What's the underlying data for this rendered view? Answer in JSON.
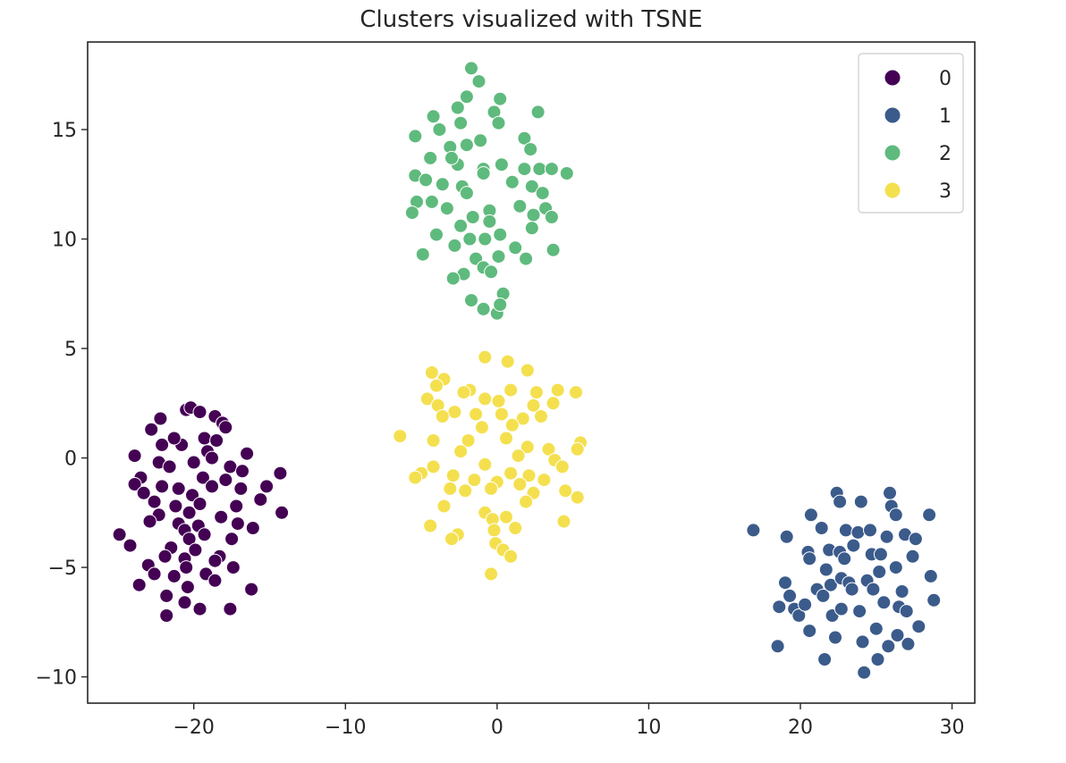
{
  "chart_data": {
    "type": "scatter",
    "title": "Clusters visualized with TSNE",
    "xlabel": "",
    "ylabel": "",
    "xlim": [
      -27,
      31.5
    ],
    "ylim": [
      -11.2,
      19
    ],
    "xticks": [
      -20,
      -10,
      0,
      10,
      20,
      30
    ],
    "yticks": [
      -10,
      -5,
      0,
      5,
      10,
      15
    ],
    "xtick_labels": [
      "−20",
      "−10",
      "0",
      "10",
      "20",
      "30"
    ],
    "ytick_labels": [
      "−10",
      "−5",
      "0",
      "5",
      "10",
      "15"
    ],
    "legend": {
      "position": "top-right",
      "entries": [
        "0",
        "1",
        "2",
        "3"
      ]
    },
    "grid": false,
    "series": [
      {
        "name": "0",
        "color": "#440154",
        "points": [
          [
            -22.2,
            1.8
          ],
          [
            -20.5,
            2.2
          ],
          [
            -20.2,
            2.3
          ],
          [
            -19.6,
            2.1
          ],
          [
            -18.6,
            1.9
          ],
          [
            -18.1,
            1.6
          ],
          [
            -22.8,
            1.3
          ],
          [
            -17.9,
            1.4
          ],
          [
            -22.1,
            0.6
          ],
          [
            -20.8,
            0.6
          ],
          [
            -19.3,
            0.9
          ],
          [
            -18.5,
            0.8
          ],
          [
            -19.1,
            0.3
          ],
          [
            -16.5,
            0.2
          ],
          [
            -21.3,
            0.9
          ],
          [
            -23.9,
            0.1
          ],
          [
            -18.8,
            0.0
          ],
          [
            -22.3,
            -0.2
          ],
          [
            -20.0,
            -0.2
          ],
          [
            -17.6,
            -0.4
          ],
          [
            -21.6,
            -0.4
          ],
          [
            -16.8,
            -0.6
          ],
          [
            -14.3,
            -0.7
          ],
          [
            -23.5,
            -0.9
          ],
          [
            -19.4,
            -0.9
          ],
          [
            -17.9,
            -1.0
          ],
          [
            -23.9,
            -1.2
          ],
          [
            -22.1,
            -1.3
          ],
          [
            -21.0,
            -1.4
          ],
          [
            -18.8,
            -1.3
          ],
          [
            -16.9,
            -1.4
          ],
          [
            -23.3,
            -1.6
          ],
          [
            -20.1,
            -1.7
          ],
          [
            -15.2,
            -1.3
          ],
          [
            -22.6,
            -2.0
          ],
          [
            -21.2,
            -2.2
          ],
          [
            -19.6,
            -2.1
          ],
          [
            -17.2,
            -2.2
          ],
          [
            -15.6,
            -1.9
          ],
          [
            -20.3,
            -2.5
          ],
          [
            -22.3,
            -2.6
          ],
          [
            -18.2,
            -2.7
          ],
          [
            -14.2,
            -2.5
          ],
          [
            -22.9,
            -2.9
          ],
          [
            -21.0,
            -3.0
          ],
          [
            -19.7,
            -3.1
          ],
          [
            -17.1,
            -3.0
          ],
          [
            -16.1,
            -3.2
          ],
          [
            -20.6,
            -3.3
          ],
          [
            -24.9,
            -3.5
          ],
          [
            -19.3,
            -3.5
          ],
          [
            -20.3,
            -3.7
          ],
          [
            -17.5,
            -3.7
          ],
          [
            -24.2,
            -4.0
          ],
          [
            -21.5,
            -4.1
          ],
          [
            -19.9,
            -4.2
          ],
          [
            -21.9,
            -4.5
          ],
          [
            -18.3,
            -4.5
          ],
          [
            -18.6,
            -4.7
          ],
          [
            -20.6,
            -4.6
          ],
          [
            -23.0,
            -4.9
          ],
          [
            -20.5,
            -5.0
          ],
          [
            -17.4,
            -5.0
          ],
          [
            -22.6,
            -5.3
          ],
          [
            -21.3,
            -5.4
          ],
          [
            -19.2,
            -5.3
          ],
          [
            -18.6,
            -5.6
          ],
          [
            -23.6,
            -5.8
          ],
          [
            -20.4,
            -5.9
          ],
          [
            -21.8,
            -6.3
          ],
          [
            -20.6,
            -6.6
          ],
          [
            -19.6,
            -6.9
          ],
          [
            -21.8,
            -7.2
          ],
          [
            -17.6,
            -6.9
          ],
          [
            -16.2,
            -6.0
          ]
        ]
      },
      {
        "name": "1",
        "color": "#3b5b8b",
        "points": [
          [
            16.9,
            -3.3
          ],
          [
            18.5,
            -8.6
          ],
          [
            18.6,
            -6.8
          ],
          [
            19.0,
            -5.7
          ],
          [
            19.1,
            -3.6
          ],
          [
            19.3,
            -6.3
          ],
          [
            19.6,
            -6.9
          ],
          [
            19.9,
            -7.2
          ],
          [
            20.3,
            -6.7
          ],
          [
            20.5,
            -4.3
          ],
          [
            20.6,
            -4.6
          ],
          [
            20.6,
            -7.9
          ],
          [
            20.7,
            -2.6
          ],
          [
            21.1,
            -6.0
          ],
          [
            21.4,
            -3.2
          ],
          [
            21.5,
            -6.3
          ],
          [
            21.6,
            -9.2
          ],
          [
            21.7,
            -5.1
          ],
          [
            21.9,
            -4.2
          ],
          [
            22.0,
            -5.8
          ],
          [
            22.1,
            -7.2
          ],
          [
            22.3,
            -8.2
          ],
          [
            22.4,
            -1.6
          ],
          [
            22.6,
            -2.0
          ],
          [
            22.6,
            -4.3
          ],
          [
            22.7,
            -5.5
          ],
          [
            22.7,
            -6.9
          ],
          [
            22.9,
            -4.6
          ],
          [
            23.0,
            -3.3
          ],
          [
            23.2,
            -5.7
          ],
          [
            23.4,
            -6.0
          ],
          [
            23.5,
            -4.0
          ],
          [
            23.8,
            -3.4
          ],
          [
            23.9,
            -7.0
          ],
          [
            24.0,
            -2.0
          ],
          [
            24.1,
            -8.4
          ],
          [
            24.2,
            -9.8
          ],
          [
            24.4,
            -5.6
          ],
          [
            24.6,
            -3.3
          ],
          [
            24.7,
            -4.4
          ],
          [
            24.8,
            -6.0
          ],
          [
            25.0,
            -7.8
          ],
          [
            25.1,
            -9.2
          ],
          [
            25.2,
            -5.2
          ],
          [
            25.3,
            -4.4
          ],
          [
            25.5,
            -6.6
          ],
          [
            25.7,
            -3.6
          ],
          [
            25.8,
            -8.6
          ],
          [
            25.9,
            -1.6
          ],
          [
            26.0,
            -2.2
          ],
          [
            26.3,
            -5.0
          ],
          [
            26.4,
            -8.1
          ],
          [
            26.5,
            -6.8
          ],
          [
            26.7,
            -6.1
          ],
          [
            26.9,
            -3.5
          ],
          [
            27.0,
            -7.0
          ],
          [
            27.1,
            -8.5
          ],
          [
            27.4,
            -4.5
          ],
          [
            27.6,
            -3.7
          ],
          [
            27.8,
            -7.7
          ],
          [
            28.5,
            -2.6
          ],
          [
            28.6,
            -5.4
          ],
          [
            28.8,
            -6.5
          ],
          [
            26.3,
            -2.6
          ]
        ]
      },
      {
        "name": "2",
        "color": "#5fba7d",
        "points": [
          [
            -1.7,
            17.8
          ],
          [
            -1.2,
            17.2
          ],
          [
            -2.0,
            16.5
          ],
          [
            0.2,
            16.4
          ],
          [
            -2.6,
            16.0
          ],
          [
            -0.2,
            15.8
          ],
          [
            2.7,
            15.8
          ],
          [
            -4.2,
            15.6
          ],
          [
            -2.4,
            15.3
          ],
          [
            0.1,
            15.3
          ],
          [
            -3.8,
            15.0
          ],
          [
            -5.4,
            14.7
          ],
          [
            1.8,
            14.6
          ],
          [
            -1.1,
            14.5
          ],
          [
            -2.0,
            14.3
          ],
          [
            2.2,
            14.1
          ],
          [
            -3.1,
            14.2
          ],
          [
            -4.4,
            13.7
          ],
          [
            -2.6,
            13.4
          ],
          [
            0.3,
            13.4
          ],
          [
            1.8,
            13.2
          ],
          [
            2.8,
            13.2
          ],
          [
            3.6,
            13.2
          ],
          [
            4.6,
            13.0
          ],
          [
            -0.9,
            13.2
          ],
          [
            -5.4,
            12.9
          ],
          [
            -4.7,
            12.7
          ],
          [
            -3.6,
            12.5
          ],
          [
            -2.3,
            12.4
          ],
          [
            1.0,
            12.6
          ],
          [
            2.3,
            12.4
          ],
          [
            3.0,
            12.1
          ],
          [
            -2.0,
            12.1
          ],
          [
            -4.3,
            11.7
          ],
          [
            -5.3,
            11.7
          ],
          [
            -3.3,
            11.4
          ],
          [
            -0.5,
            11.3
          ],
          [
            1.5,
            11.5
          ],
          [
            3.2,
            11.4
          ],
          [
            -5.6,
            11.2
          ],
          [
            -1.6,
            11.0
          ],
          [
            -0.5,
            10.8
          ],
          [
            2.4,
            11.1
          ],
          [
            3.6,
            11.0
          ],
          [
            -2.4,
            10.6
          ],
          [
            0.2,
            10.2
          ],
          [
            2.3,
            10.5
          ],
          [
            -4.0,
            10.2
          ],
          [
            -1.8,
            10.0
          ],
          [
            -0.8,
            10.0
          ],
          [
            -2.8,
            9.7
          ],
          [
            1.2,
            9.6
          ],
          [
            3.7,
            9.5
          ],
          [
            -4.9,
            9.3
          ],
          [
            -1.4,
            9.1
          ],
          [
            0.1,
            9.2
          ],
          [
            1.9,
            9.1
          ],
          [
            -0.9,
            8.7
          ],
          [
            -0.4,
            8.5
          ],
          [
            -2.2,
            8.4
          ],
          [
            -2.9,
            8.2
          ],
          [
            0.4,
            7.5
          ],
          [
            -1.7,
            7.2
          ],
          [
            -0.9,
            6.8
          ],
          [
            0.0,
            6.6
          ],
          [
            0.2,
            7.0
          ],
          [
            -3.0,
            13.7
          ],
          [
            -0.9,
            13.0
          ]
        ]
      },
      {
        "name": "3",
        "color": "#f4e04f",
        "points": [
          [
            -0.8,
            4.6
          ],
          [
            0.7,
            4.4
          ],
          [
            2.0,
            4.0
          ],
          [
            -4.3,
            3.9
          ],
          [
            -3.5,
            3.6
          ],
          [
            -4.0,
            3.3
          ],
          [
            -1.8,
            3.1
          ],
          [
            -2.2,
            3.0
          ],
          [
            0.9,
            3.1
          ],
          [
            2.6,
            3.0
          ],
          [
            4.0,
            3.1
          ],
          [
            5.2,
            3.0
          ],
          [
            -4.6,
            2.7
          ],
          [
            -3.9,
            2.4
          ],
          [
            -0.8,
            2.7
          ],
          [
            0.1,
            2.6
          ],
          [
            2.4,
            2.4
          ],
          [
            3.7,
            2.5
          ],
          [
            -2.8,
            2.1
          ],
          [
            -1.4,
            2.0
          ],
          [
            -3.6,
            1.9
          ],
          [
            0.3,
            2.0
          ],
          [
            1.7,
            1.8
          ],
          [
            2.9,
            1.9
          ],
          [
            -1.0,
            1.4
          ],
          [
            1.0,
            1.5
          ],
          [
            -6.4,
            1.0
          ],
          [
            -4.2,
            0.8
          ],
          [
            -1.9,
            0.8
          ],
          [
            0.6,
            0.9
          ],
          [
            2.0,
            0.5
          ],
          [
            3.4,
            0.4
          ],
          [
            5.5,
            0.7
          ],
          [
            5.3,
            0.4
          ],
          [
            -2.4,
            0.3
          ],
          [
            1.4,
            0.1
          ],
          [
            3.8,
            -0.1
          ],
          [
            -4.2,
            -0.4
          ],
          [
            -0.8,
            -0.3
          ],
          [
            4.3,
            -0.4
          ],
          [
            -5.0,
            -0.7
          ],
          [
            -2.9,
            -0.8
          ],
          [
            0.9,
            -0.7
          ],
          [
            2.1,
            -0.8
          ],
          [
            -5.4,
            -0.9
          ],
          [
            -1.5,
            -1.0
          ],
          [
            0.0,
            -1.1
          ],
          [
            1.5,
            -1.2
          ],
          [
            3.1,
            -1.0
          ],
          [
            -2.1,
            -1.5
          ],
          [
            -3.1,
            -1.4
          ],
          [
            -0.4,
            -1.4
          ],
          [
            2.4,
            -1.6
          ],
          [
            4.5,
            -1.5
          ],
          [
            -3.5,
            -2.2
          ],
          [
            1.9,
            -2.0
          ],
          [
            5.3,
            -1.8
          ],
          [
            -0.8,
            -2.5
          ],
          [
            0.6,
            -2.7
          ],
          [
            -0.3,
            -2.8
          ],
          [
            4.4,
            -2.9
          ],
          [
            -4.4,
            -3.1
          ],
          [
            -0.2,
            -3.3
          ],
          [
            1.2,
            -3.2
          ],
          [
            -2.6,
            -3.5
          ],
          [
            -3.0,
            -3.7
          ],
          [
            -0.1,
            -3.9
          ],
          [
            0.4,
            -4.2
          ],
          [
            0.9,
            -4.5
          ],
          [
            -0.4,
            -5.3
          ]
        ]
      }
    ]
  }
}
